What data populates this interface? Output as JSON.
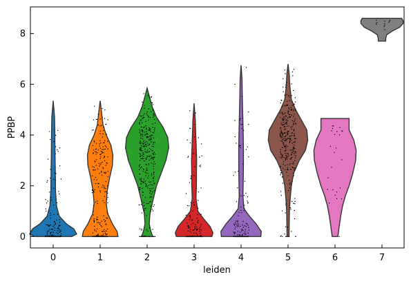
{
  "chart_data": {
    "type": "violin",
    "title": "",
    "xlabel": "leiden",
    "ylabel": "PPBP",
    "ylim": [
      -0.45,
      9.05
    ],
    "yticks": [
      0,
      2,
      4,
      6,
      8
    ],
    "grid": false,
    "legend": "none",
    "categories": [
      "0",
      "1",
      "2",
      "3",
      "4",
      "5",
      "6",
      "7"
    ],
    "violins": [
      {
        "category": "0",
        "color": "#1f77b4",
        "min": 0,
        "max": 5.35,
        "profile": [
          [
            0,
            0.4
          ],
          [
            0.1,
            0.5
          ],
          [
            0.3,
            0.44
          ],
          [
            0.5,
            0.28
          ],
          [
            0.8,
            0.13
          ],
          [
            1.2,
            0.07
          ],
          [
            1.8,
            0.05
          ],
          [
            2.5,
            0.045
          ],
          [
            3.2,
            0.04
          ],
          [
            4.0,
            0.035
          ],
          [
            4.7,
            0.03
          ],
          [
            5.35,
            0.0
          ]
        ]
      },
      {
        "category": "1",
        "color": "#ff7f0e",
        "min": 0,
        "max": 5.35,
        "profile": [
          [
            0,
            0.38
          ],
          [
            0.2,
            0.36
          ],
          [
            0.5,
            0.26
          ],
          [
            0.9,
            0.16
          ],
          [
            1.3,
            0.13
          ],
          [
            1.8,
            0.15
          ],
          [
            2.3,
            0.2
          ],
          [
            2.8,
            0.26
          ],
          [
            3.2,
            0.27
          ],
          [
            3.6,
            0.23
          ],
          [
            4.0,
            0.13
          ],
          [
            4.4,
            0.06
          ],
          [
            4.9,
            0.03
          ],
          [
            5.35,
            0.0
          ]
        ]
      },
      {
        "category": "2",
        "color": "#2ca02c",
        "min": 0,
        "max": 5.85,
        "profile": [
          [
            0,
            0.12
          ],
          [
            0.2,
            0.08
          ],
          [
            0.5,
            0.045
          ],
          [
            0.9,
            0.06
          ],
          [
            1.4,
            0.12
          ],
          [
            2.0,
            0.2
          ],
          [
            2.5,
            0.3
          ],
          [
            3.0,
            0.4
          ],
          [
            3.5,
            0.46
          ],
          [
            3.9,
            0.44
          ],
          [
            4.3,
            0.34
          ],
          [
            4.7,
            0.2
          ],
          [
            5.1,
            0.11
          ],
          [
            5.5,
            0.05
          ],
          [
            5.85,
            0.0
          ]
        ]
      },
      {
        "category": "3",
        "color": "#d62728",
        "min": 0,
        "max": 5.25,
        "profile": [
          [
            0,
            0.38
          ],
          [
            0.15,
            0.4
          ],
          [
            0.4,
            0.34
          ],
          [
            0.7,
            0.2
          ],
          [
            1.0,
            0.08
          ],
          [
            1.5,
            0.04
          ],
          [
            2.0,
            0.05
          ],
          [
            2.5,
            0.05
          ],
          [
            3.0,
            0.055
          ],
          [
            3.5,
            0.045
          ],
          [
            4.0,
            0.035
          ],
          [
            4.6,
            0.025
          ],
          [
            5.25,
            0.0
          ]
        ]
      },
      {
        "category": "4",
        "color": "#9467bd",
        "min": 0,
        "max": 6.75,
        "profile": [
          [
            0,
            0.42
          ],
          [
            0.2,
            0.43
          ],
          [
            0.5,
            0.32
          ],
          [
            0.8,
            0.18
          ],
          [
            1.1,
            0.06
          ],
          [
            1.6,
            0.04
          ],
          [
            2.2,
            0.045
          ],
          [
            2.8,
            0.05
          ],
          [
            3.4,
            0.05
          ],
          [
            4.0,
            0.045
          ],
          [
            4.8,
            0.035
          ],
          [
            5.6,
            0.025
          ],
          [
            6.2,
            0.02
          ],
          [
            6.75,
            0.0
          ]
        ]
      },
      {
        "category": "5",
        "color": "#8c564b",
        "min": 0,
        "max": 6.8,
        "profile": [
          [
            0,
            0.02
          ],
          [
            0.5,
            0.025
          ],
          [
            1.0,
            0.03
          ],
          [
            1.5,
            0.045
          ],
          [
            2.0,
            0.07
          ],
          [
            2.5,
            0.12
          ],
          [
            3.0,
            0.24
          ],
          [
            3.4,
            0.37
          ],
          [
            3.8,
            0.42
          ],
          [
            4.2,
            0.4
          ],
          [
            4.6,
            0.28
          ],
          [
            5.0,
            0.16
          ],
          [
            5.4,
            0.07
          ],
          [
            5.9,
            0.04
          ],
          [
            6.4,
            0.025
          ],
          [
            6.8,
            0.0
          ]
        ]
      },
      {
        "category": "6",
        "color": "#e377c2",
        "min": 0,
        "max": 4.65,
        "profile": [
          [
            0,
            0.06
          ],
          [
            0.4,
            0.09
          ],
          [
            0.8,
            0.12
          ],
          [
            1.2,
            0.16
          ],
          [
            1.6,
            0.22
          ],
          [
            2.0,
            0.3
          ],
          [
            2.5,
            0.38
          ],
          [
            3.0,
            0.44
          ],
          [
            3.4,
            0.45
          ],
          [
            3.8,
            0.4
          ],
          [
            4.2,
            0.3
          ],
          [
            4.65,
            0.3
          ]
        ]
      },
      {
        "category": "7",
        "color": "#7f7f7f",
        "min": 7.7,
        "max": 8.6,
        "profile": [
          [
            7.7,
            0.08
          ],
          [
            7.8,
            0.08
          ],
          [
            7.95,
            0.1
          ],
          [
            8.1,
            0.22
          ],
          [
            8.25,
            0.38
          ],
          [
            8.4,
            0.45
          ],
          [
            8.5,
            0.45
          ],
          [
            8.6,
            0.42
          ]
        ]
      }
    ],
    "points": [
      {
        "category": "0",
        "n": 190,
        "min": 0,
        "max": 5.35,
        "zero_frac": 0.45
      },
      {
        "category": "1",
        "n": 260,
        "min": 0,
        "max": 5.35,
        "zero_frac": 0.25
      },
      {
        "category": "2",
        "n": 340,
        "min": 0,
        "max": 5.85,
        "zero_frac": 0.06
      },
      {
        "category": "3",
        "n": 170,
        "min": 0,
        "max": 5.25,
        "zero_frac": 0.45
      },
      {
        "category": "4",
        "n": 170,
        "min": 0,
        "max": 6.75,
        "zero_frac": 0.45
      },
      {
        "category": "5",
        "n": 330,
        "min": 0,
        "max": 6.8,
        "zero_frac": 0.02
      },
      {
        "category": "6",
        "n": 25,
        "min": 0,
        "max": 4.65,
        "zero_frac": 0.08
      },
      {
        "category": "7",
        "n": 12,
        "min": 8.1,
        "max": 8.55,
        "zero_frac": 0
      }
    ]
  }
}
